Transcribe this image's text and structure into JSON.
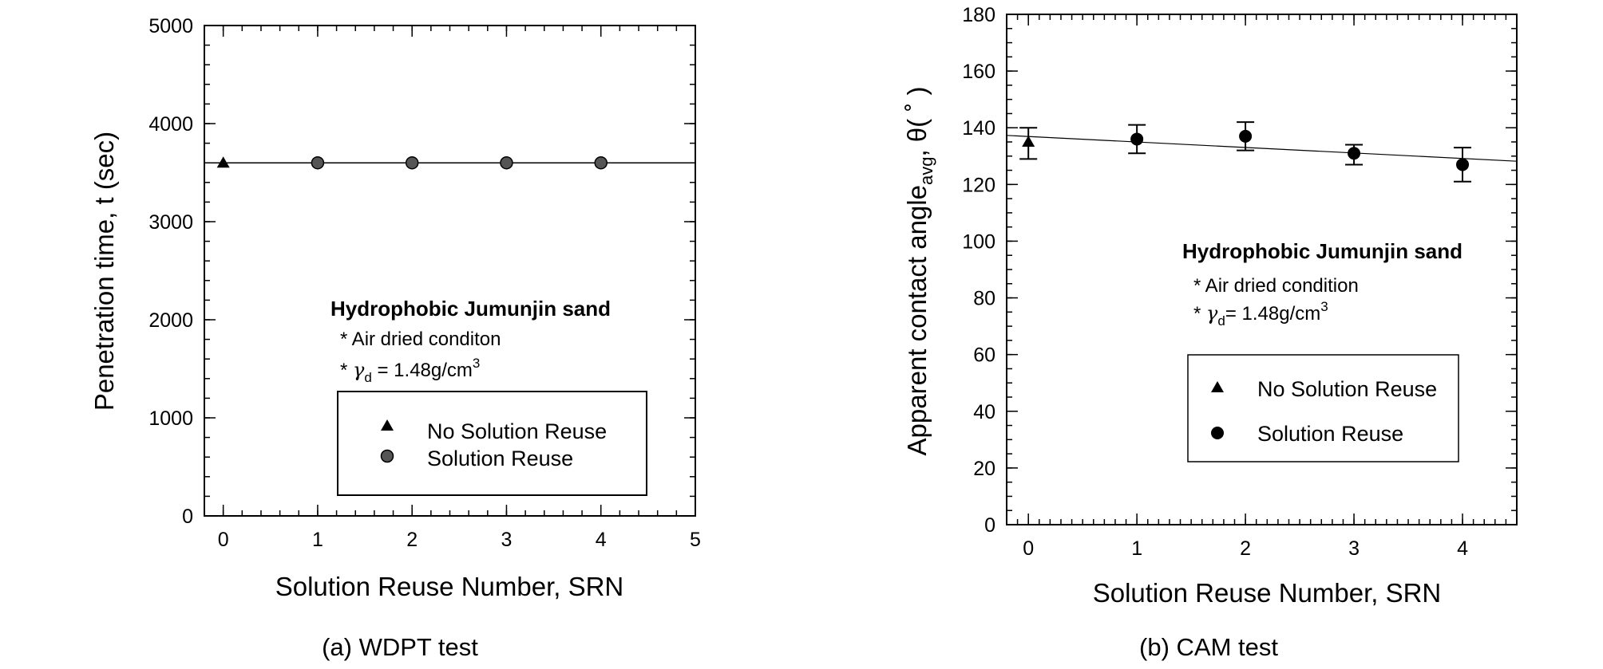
{
  "chart_data": [
    {
      "type": "scatter",
      "panel": "a",
      "caption": "(a) WDPT test",
      "xlabel": "Solution Reuse Number, SRN",
      "ylabel": "Penetration time, t (sec)",
      "xlim": [
        -0.2,
        5
      ],
      "ylim": [
        0,
        5000
      ],
      "xticks": [
        "0",
        "1",
        "2",
        "3",
        "4",
        "5"
      ],
      "yticks": [
        "0",
        "1000",
        "2000",
        "3000",
        "4000",
        "5000"
      ],
      "series": [
        {
          "name": "No Solution Reuse",
          "marker": "triangle",
          "color": "#000000",
          "x": [
            0
          ],
          "y": [
            3600
          ]
        },
        {
          "name": "Solution Reuse",
          "marker": "circle",
          "color": "#555555",
          "x": [
            1,
            2,
            3,
            4
          ],
          "y": [
            3600,
            3600,
            3600,
            3600
          ]
        }
      ],
      "trendline": {
        "x": [
          -0.2,
          5
        ],
        "y": [
          3600,
          3600
        ]
      },
      "annotation": {
        "title": "Hydrophobic Jumunjin sand",
        "title_color": "#1a1aff",
        "line1": "* Air dried conditon",
        "line2_prefix": "* ",
        "line2_symbol": "γ",
        "line2_sub": "d",
        "line2_value": " = 1.48g/cm",
        "line2_sup": "3"
      },
      "legend": {
        "position": "bottom-right",
        "entries": [
          "No Solution Reuse",
          "Solution Reuse"
        ]
      }
    },
    {
      "type": "scatter",
      "panel": "b",
      "caption": "(b) CAM test",
      "xlabel": "Solution Reuse Number, SRN",
      "ylabel_main": "Apparent contact angle",
      "ylabel_sub": "avg",
      "ylabel_tail": ", θ( ˚ )",
      "xlim": [
        -0.2,
        4.5
      ],
      "ylim": [
        0,
        180
      ],
      "xticks": [
        "0",
        "1",
        "2",
        "3",
        "4"
      ],
      "yticks": [
        "0",
        "20",
        "40",
        "60",
        "80",
        "100",
        "120",
        "140",
        "160",
        "180"
      ],
      "series": [
        {
          "name": "No Solution Reuse",
          "marker": "triangle",
          "color": "#000000",
          "x": [
            0
          ],
          "y": [
            135
          ],
          "err_low": [
            129
          ],
          "err_high": [
            140
          ]
        },
        {
          "name": "Solution Reuse",
          "marker": "circle",
          "color": "#000000",
          "x": [
            1,
            2,
            3,
            4
          ],
          "y": [
            136,
            137,
            131,
            127
          ],
          "err_low": [
            131,
            132,
            127,
            121
          ],
          "err_high": [
            141,
            142,
            134,
            133
          ]
        }
      ],
      "trendline": {
        "x": [
          -0.2,
          4.5
        ],
        "y": [
          137.3,
          128.2
        ]
      },
      "annotation": {
        "title": "Hydrophobic Jumunjin sand",
        "title_color": "#1a1aff",
        "line1": "* Air dried condition",
        "line2_prefix": "* ",
        "line2_symbol": "γ",
        "line2_sub": "d",
        "line2_value": "= 1.48g/cm",
        "line2_sup": "3"
      },
      "legend": {
        "position": "center-right",
        "entries": [
          "No Solution Reuse",
          "Solution Reuse"
        ]
      }
    }
  ]
}
